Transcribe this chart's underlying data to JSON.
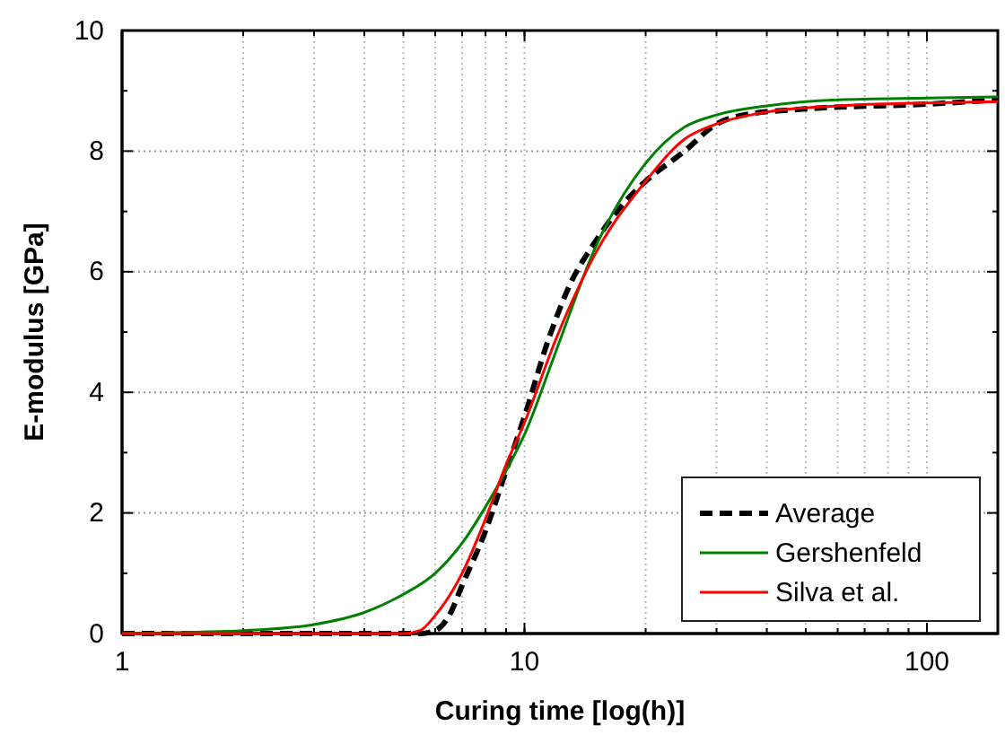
{
  "chart_data": {
    "type": "line",
    "xlabel": "Curing time [log(h)]",
    "ylabel": "E-modulus [GPa]",
    "log": "x",
    "xlim": [
      1,
      150
    ],
    "xticks": [
      1,
      10,
      100
    ],
    "ylim": [
      0,
      10
    ],
    "yticks": [
      0,
      2,
      4,
      6,
      8,
      10
    ],
    "grid": true,
    "legend": "bottom right",
    "marker": "none",
    "series": [
      {
        "name": "Average",
        "color": "#000000",
        "line_style": "dashed",
        "x": [
          1,
          3,
          5.5,
          6,
          6.5,
          7,
          8,
          9,
          10,
          11.5,
          13,
          15,
          18,
          20,
          25,
          30,
          35,
          50,
          100,
          150
        ],
        "values": [
          0,
          0,
          0,
          0.05,
          0.3,
          0.8,
          1.7,
          2.7,
          3.6,
          4.9,
          5.8,
          6.5,
          7.2,
          7.5,
          8,
          8.45,
          8.6,
          8.7,
          8.78,
          8.85
        ]
      },
      {
        "name": "Gershenfeld",
        "color": "#008000",
        "line_style": "solid",
        "x": [
          1,
          2,
          3,
          4,
          5,
          6,
          7,
          8,
          9,
          10,
          12,
          15,
          20,
          25,
          30,
          40,
          60,
          100,
          150
        ],
        "values": [
          0,
          0.05,
          0.15,
          0.35,
          0.65,
          1,
          1.5,
          2.1,
          2.7,
          3.3,
          4.7,
          6.4,
          7.8,
          8.4,
          8.6,
          8.75,
          8.85,
          8.88,
          8.9
        ]
      },
      {
        "name": "Silva et al.",
        "color": "#ff0000",
        "line_style": "solid",
        "x": [
          1,
          3,
          5,
          5.5,
          6,
          7,
          8,
          9,
          10,
          12,
          15,
          20,
          25,
          30,
          40,
          60,
          100,
          150
        ],
        "values": [
          0,
          0,
          0,
          0.05,
          0.3,
          1,
          1.9,
          2.8,
          3.5,
          4.9,
          6.3,
          7.5,
          8.2,
          8.45,
          8.65,
          8.75,
          8.8,
          8.82
        ]
      }
    ]
  }
}
